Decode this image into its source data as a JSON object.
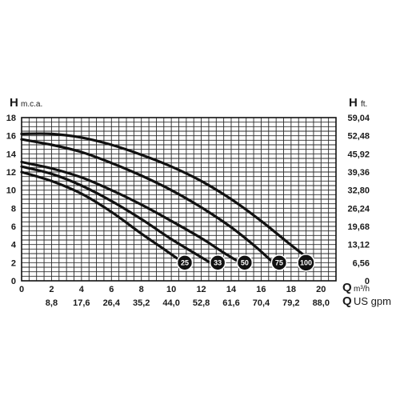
{
  "chart_data": {
    "type": "line",
    "left_axis": {
      "letter": "H",
      "unit": "m.c.a.",
      "ticks": [
        "0",
        "2",
        "4",
        "6",
        "8",
        "10",
        "12",
        "14",
        "16",
        "18"
      ],
      "range": [
        0,
        18
      ]
    },
    "right_axis": {
      "letter": "H",
      "unit": "ft.",
      "ticks": [
        "0",
        "6,56",
        "13,12",
        "19,68",
        "26,24",
        "32,80",
        "39,36",
        "45,92",
        "52,48",
        "59,04"
      ]
    },
    "x_axis": {
      "letter": "Q",
      "unit": "m³/h",
      "ticks": [
        "0",
        "2",
        "4",
        "6",
        "8",
        "10",
        "12",
        "14",
        "16",
        "18",
        "20"
      ],
      "range": [
        0,
        21
      ]
    },
    "x_axis_secondary": {
      "letter": "Q",
      "unit": "US gpm",
      "ticks": [
        "8,8",
        "17,6",
        "26,4",
        "35,2",
        "44,0",
        "52,8",
        "61,6",
        "70,4",
        "79,2",
        "88,0"
      ]
    },
    "grid": true,
    "series": [
      {
        "name": "25",
        "x": [
          0,
          2,
          4,
          6,
          8,
          9.5,
          10.8
        ],
        "y": [
          12.0,
          11.0,
          9.6,
          7.6,
          5.2,
          3.5,
          2.0
        ]
      },
      {
        "name": "33",
        "x": [
          0,
          2,
          4,
          6,
          8,
          10,
          11.5,
          12.8
        ],
        "y": [
          12.6,
          11.8,
          10.5,
          8.8,
          6.8,
          4.6,
          3.1,
          1.8
        ]
      },
      {
        "name": "50",
        "x": [
          0,
          2,
          4,
          6,
          8,
          10,
          12,
          13.5,
          14.6
        ],
        "y": [
          13.1,
          12.4,
          11.4,
          10.0,
          8.4,
          6.6,
          4.7,
          3.1,
          2.0
        ]
      },
      {
        "name": "75",
        "x": [
          0,
          2,
          4,
          6,
          8,
          10,
          12,
          14,
          15.6,
          16.8
        ],
        "y": [
          15.6,
          15.0,
          14.2,
          13.0,
          11.6,
          10.0,
          8.1,
          5.9,
          3.8,
          2.0
        ]
      },
      {
        "name": "100",
        "x": [
          0,
          2,
          4,
          6,
          8,
          10,
          12,
          14,
          16,
          17.8,
          19.2
        ],
        "y": [
          16.2,
          16.2,
          15.8,
          15.0,
          13.9,
          12.6,
          11.0,
          9.0,
          6.6,
          4.2,
          2.4
        ]
      }
    ],
    "badge_y": 2.0,
    "badge_x": [
      10.9,
      13.1,
      14.9,
      17.2,
      19.0
    ]
  }
}
